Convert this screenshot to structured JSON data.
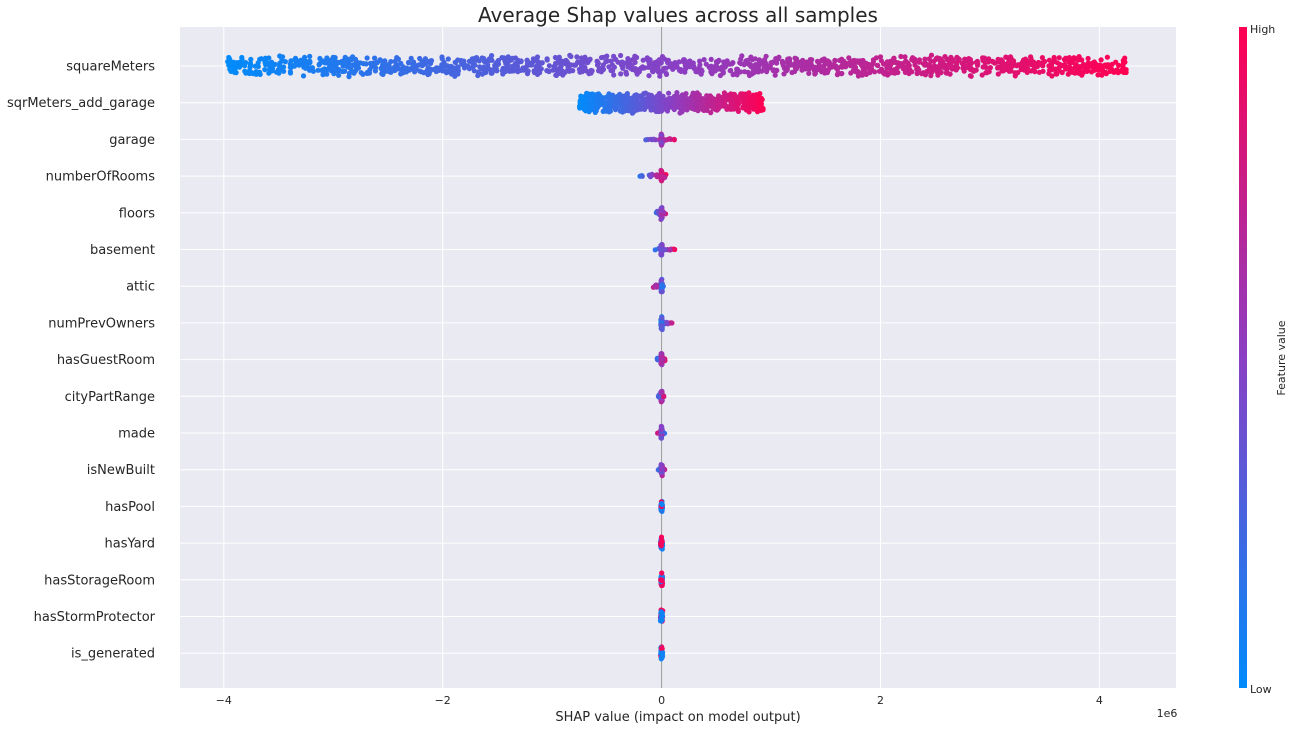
{
  "chart_data": {
    "type": "scatter",
    "subtype": "shap-beeswarm",
    "title": "Average Shap values across all samples",
    "xlabel": "SHAP value (impact on model output)",
    "x_offset_label": "1e6",
    "xlim": [
      -4.4,
      4.7
    ],
    "xticks": [
      -4,
      -2,
      0,
      2,
      4
    ],
    "xtick_labels": [
      "−4",
      "−2",
      "0",
      "2",
      "4"
    ],
    "grid": true,
    "colorbar": {
      "label": "Feature value",
      "high_label": "High",
      "low_label": "Low",
      "low_color": "#008bfb",
      "mid_color": "#8a3fc4",
      "high_color": "#ff0052"
    },
    "features": [
      {
        "name": "squareMeters",
        "min": -3.97,
        "max": 4.25,
        "slope": 1,
        "density": "wide"
      },
      {
        "name": "sqrMeters_add_garage",
        "min": -0.75,
        "max": 0.93,
        "slope": 1,
        "density": "wide"
      },
      {
        "name": "garage",
        "min": -0.17,
        "max": 0.12,
        "slope": 1,
        "density": "thin"
      },
      {
        "name": "numberOfRooms",
        "min": -0.2,
        "max": 0.05,
        "slope": 1,
        "density": "thin"
      },
      {
        "name": "floors",
        "min": -0.05,
        "max": 0.04,
        "slope": 1,
        "density": "thin"
      },
      {
        "name": "basement",
        "min": -0.07,
        "max": 0.12,
        "slope": 1,
        "density": "thin"
      },
      {
        "name": "attic",
        "min": -0.08,
        "max": 0.02,
        "slope": -1,
        "density": "thin"
      },
      {
        "name": "numPrevOwners",
        "min": -0.01,
        "max": 0.11,
        "slope": 1,
        "density": "thin"
      },
      {
        "name": "hasGuestRoom",
        "min": -0.04,
        "max": 0.03,
        "slope": 1,
        "density": "thin"
      },
      {
        "name": "cityPartRange",
        "min": -0.03,
        "max": 0.02,
        "slope": 1,
        "density": "thin"
      },
      {
        "name": "made",
        "min": -0.04,
        "max": 0.03,
        "slope": -1,
        "density": "thin"
      },
      {
        "name": "isNewBuilt",
        "min": -0.03,
        "max": 0.03,
        "slope": 1,
        "density": "thin"
      },
      {
        "name": "hasPool",
        "min": -0.01,
        "max": 0.01,
        "slope": 0,
        "density": "thin"
      },
      {
        "name": "hasYard",
        "min": -0.01,
        "max": 0.01,
        "slope": 0,
        "density": "thin"
      },
      {
        "name": "hasStorageRoom",
        "min": -0.01,
        "max": 0.01,
        "slope": 0,
        "density": "thin"
      },
      {
        "name": "hasStormProtector",
        "min": -0.01,
        "max": 0.01,
        "slope": 0,
        "density": "thin"
      },
      {
        "name": "is_generated",
        "min": -0.01,
        "max": 0.01,
        "slope": 0,
        "density": "thin"
      }
    ]
  }
}
